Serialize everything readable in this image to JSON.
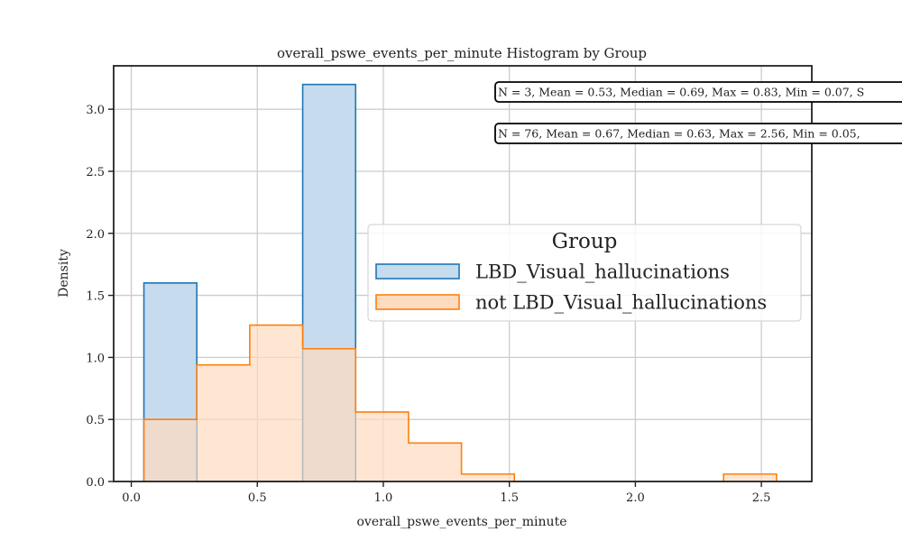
{
  "chart_data": {
    "type": "histogram",
    "title": "overall_pswe_events_per_minute Histogram by Group",
    "xlabel": "overall_pswe_events_per_minute",
    "ylabel": "Density",
    "xlim": [
      -0.07,
      2.7
    ],
    "ylim": [
      0,
      3.35
    ],
    "xticks": [
      0.0,
      0.5,
      1.0,
      1.5,
      2.0,
      2.5
    ],
    "xtick_labels": [
      "0.0",
      "0.5",
      "1.0",
      "1.5",
      "2.0",
      "2.5"
    ],
    "yticks": [
      0.0,
      0.5,
      1.0,
      1.5,
      2.0,
      2.5,
      3.0
    ],
    "ytick_labels": [
      "0.0",
      "0.5",
      "1.0",
      "1.5",
      "2.0",
      "2.5",
      "3.0"
    ],
    "grid": true,
    "legend": {
      "title": "Group",
      "placement": "center-right"
    },
    "series": [
      {
        "name": "LBD_Visual_hallucinations",
        "color": "#1f77b4",
        "fill": "#c6dbed",
        "bins": [
          {
            "x0": 0.05,
            "x1": 0.26,
            "density": 1.6
          },
          {
            "x0": 0.26,
            "x1": 0.68,
            "density": 0.0
          },
          {
            "x0": 0.68,
            "x1": 0.89,
            "density": 3.2
          }
        ]
      },
      {
        "name": "not LBD_Visual_hallucinations",
        "color": "#ff7f0e",
        "fill": "#ffdcc0",
        "bins": [
          {
            "x0": 0.05,
            "x1": 0.26,
            "density": 0.5
          },
          {
            "x0": 0.26,
            "x1": 0.47,
            "density": 0.94
          },
          {
            "x0": 0.47,
            "x1": 0.68,
            "density": 1.26
          },
          {
            "x0": 0.68,
            "x1": 0.89,
            "density": 1.07
          },
          {
            "x0": 0.89,
            "x1": 1.1,
            "density": 0.56
          },
          {
            "x0": 1.1,
            "x1": 1.31,
            "density": 0.31
          },
          {
            "x0": 1.31,
            "x1": 1.52,
            "density": 0.06
          },
          {
            "x0": 1.52,
            "x1": 2.35,
            "density": 0.0
          },
          {
            "x0": 2.35,
            "x1": 2.56,
            "density": 0.06
          }
        ]
      }
    ],
    "annotations": [
      "N = 3, Mean = 0.53, Median = 0.69, Max = 0.83, Min = 0.07, S",
      "N = 76, Mean = 0.67, Median = 0.63, Max = 2.56, Min = 0.05,"
    ]
  }
}
